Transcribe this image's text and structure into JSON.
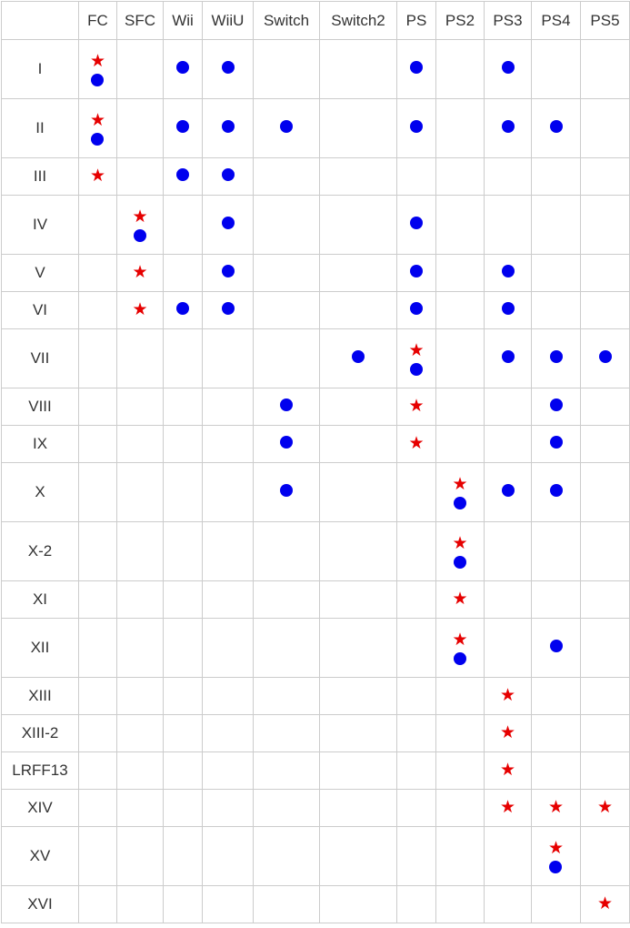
{
  "columns": [
    "",
    "FC",
    "SFC",
    "Wii",
    "WiiU",
    "Switch",
    "Switch2",
    "PS",
    "PS2",
    "PS3",
    "PS4",
    "PS5"
  ],
  "legend": {
    "star_color": "#e60000",
    "dot_color": "#0000ee"
  },
  "rows": [
    {
      "title": "I",
      "cells": [
        "SD",
        "",
        "D",
        "D",
        "",
        "",
        "D",
        "",
        "D",
        "",
        ""
      ]
    },
    {
      "title": "II",
      "cells": [
        "SD",
        "",
        "D",
        "D",
        "D",
        "",
        "D",
        "",
        "D",
        "D",
        ""
      ]
    },
    {
      "title": "III",
      "cells": [
        "S",
        "",
        "D",
        "D",
        "",
        "",
        "",
        "",
        "",
        "",
        ""
      ]
    },
    {
      "title": "IV",
      "cells": [
        "",
        "SD",
        "",
        "D",
        "",
        "",
        "D",
        "",
        "",
        "",
        ""
      ]
    },
    {
      "title": "V",
      "cells": [
        "",
        "S",
        "",
        "D",
        "",
        "",
        "D",
        "",
        "D",
        "",
        ""
      ]
    },
    {
      "title": "VI",
      "cells": [
        "",
        "S",
        "D",
        "D",
        "",
        "",
        "D",
        "",
        "D",
        "",
        ""
      ]
    },
    {
      "title": "VII",
      "cells": [
        "",
        "",
        "",
        "",
        "",
        "D",
        "SD",
        "",
        "D",
        "D",
        "D"
      ]
    },
    {
      "title": "VIII",
      "cells": [
        "",
        "",
        "",
        "",
        "D",
        "",
        "S",
        "",
        "",
        "D",
        ""
      ]
    },
    {
      "title": "IX",
      "cells": [
        "",
        "",
        "",
        "",
        "D",
        "",
        "S",
        "",
        "",
        "D",
        ""
      ]
    },
    {
      "title": "X",
      "cells": [
        "",
        "",
        "",
        "",
        "D",
        "",
        "",
        "SD",
        "D",
        "D",
        ""
      ]
    },
    {
      "title": "X-2",
      "cells": [
        "",
        "",
        "",
        "",
        "",
        "",
        "",
        "SD",
        "",
        "",
        ""
      ]
    },
    {
      "title": "XI",
      "cells": [
        "",
        "",
        "",
        "",
        "",
        "",
        "",
        "S",
        "",
        "",
        ""
      ]
    },
    {
      "title": "XII",
      "cells": [
        "",
        "",
        "",
        "",
        "",
        "",
        "",
        "SD",
        "",
        "D",
        ""
      ]
    },
    {
      "title": "XIII",
      "cells": [
        "",
        "",
        "",
        "",
        "",
        "",
        "",
        "",
        "S",
        "",
        ""
      ]
    },
    {
      "title": "XIII-2",
      "cells": [
        "",
        "",
        "",
        "",
        "",
        "",
        "",
        "",
        "S",
        "",
        ""
      ]
    },
    {
      "title": "LRFF13",
      "cells": [
        "",
        "",
        "",
        "",
        "",
        "",
        "",
        "",
        "S",
        "",
        ""
      ]
    },
    {
      "title": "XIV",
      "cells": [
        "",
        "",
        "",
        "",
        "",
        "",
        "",
        "",
        "S",
        "S",
        "S"
      ]
    },
    {
      "title": "XV",
      "cells": [
        "",
        "",
        "",
        "",
        "",
        "",
        "",
        "",
        "",
        "SD",
        ""
      ]
    },
    {
      "title": "XVI",
      "cells": [
        "",
        "",
        "",
        "",
        "",
        "",
        "",
        "",
        "",
        "",
        "S"
      ]
    }
  ]
}
